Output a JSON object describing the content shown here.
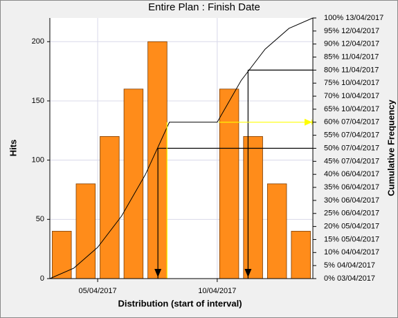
{
  "chart_data": {
    "type": "histogram",
    "title": "Entire Plan : Finish Date",
    "x_label": "Distribution (start of interval)",
    "y_label": "Hits",
    "y2_label": "Cumulative Frequency",
    "bins": [
      0,
      1,
      2,
      3,
      4,
      5,
      6,
      7,
      8,
      9,
      10,
      11
    ],
    "values": [
      40,
      80,
      120,
      160,
      200,
      0,
      0,
      160,
      120,
      80,
      40
    ],
    "color": "#ff8c1a",
    "xlim": [
      0,
      11
    ],
    "xticks": [
      {
        "value": 2,
        "label": "05/04/2017"
      },
      {
        "value": 7,
        "label": "10/04/2017"
      }
    ],
    "ylim": [
      0,
      220
    ],
    "yticks": [
      0,
      50,
      100,
      150,
      200
    ],
    "y2lim": [
      0,
      100
    ],
    "y2ticks": [
      {
        "value": 0,
        "label": "0%  03/04/2017"
      },
      {
        "value": 5,
        "label": "5%  04/04/2017"
      },
      {
        "value": 10,
        "label": "10%  04/04/2017"
      },
      {
        "value": 15,
        "label": "15%  05/04/2017"
      },
      {
        "value": 20,
        "label": "20%  05/04/2017"
      },
      {
        "value": 25,
        "label": "25%  06/04/2017"
      },
      {
        "value": 30,
        "label": "30%  06/04/2017"
      },
      {
        "value": 35,
        "label": "35%  06/04/2017"
      },
      {
        "value": 40,
        "label": "40%  06/04/2017"
      },
      {
        "value": 45,
        "label": "45%  07/04/2017"
      },
      {
        "value": 50,
        "label": "50%  07/04/2017"
      },
      {
        "value": 55,
        "label": "55%  07/04/2017"
      },
      {
        "value": 60,
        "label": "60%  07/04/2017"
      },
      {
        "value": 65,
        "label": "65%  10/04/2017"
      },
      {
        "value": 70,
        "label": "70%  10/04/2017"
      },
      {
        "value": 75,
        "label": "75%  10/04/2017"
      },
      {
        "value": 80,
        "label": "80%  11/04/2017"
      },
      {
        "value": 85,
        "label": "85%  11/04/2017"
      },
      {
        "value": 90,
        "label": "90%  12/04/2017"
      },
      {
        "value": 95,
        "label": "95%  12/04/2017"
      },
      {
        "value": 100,
        "label": "100%  13/04/2017"
      }
    ],
    "cumulative": {
      "x": [
        0,
        1,
        2,
        3,
        4,
        5,
        6,
        7,
        8,
        9,
        10,
        11
      ],
      "values": [
        0,
        4,
        12,
        24,
        40,
        60,
        60,
        60,
        76,
        88,
        96,
        100
      ],
      "color": "#000000"
    },
    "markers": [
      {
        "y2": 50,
        "x": 4.52,
        "hline_from": 4.52,
        "color": "#000000"
      },
      {
        "y2": 80,
        "x": 8.29,
        "hline_from": 8.29,
        "color": "#000000"
      },
      {
        "y2": 60,
        "x": 4.9,
        "hline_from": 7.05,
        "color": "#ffff00"
      }
    ],
    "grid": true
  }
}
